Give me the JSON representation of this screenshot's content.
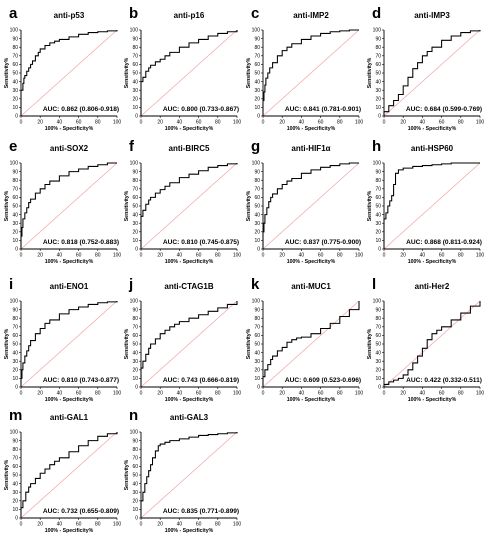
{
  "figure": {
    "background": "#ffffff",
    "roc_color": "#000000",
    "diagonal_color": "#f4a3a3"
  },
  "chart_data": [
    {
      "letter": "a",
      "type": "line",
      "title": "anti-p53",
      "auc": "AUC: 0.862 (0.806-0.918)",
      "xlabel": "100% - Specificity%",
      "ylabel": "Sensitivity%",
      "xlim": [
        0,
        100
      ],
      "ylim": [
        0,
        100
      ],
      "xticks": [
        0,
        20,
        40,
        60,
        80,
        100
      ],
      "yticks": [
        0,
        10,
        20,
        30,
        40,
        50,
        60,
        70,
        80,
        90,
        100
      ],
      "diagonal": true,
      "x": [
        0,
        0,
        2,
        3,
        4,
        6,
        8,
        10,
        12,
        15,
        18,
        20,
        25,
        30,
        35,
        40,
        50,
        60,
        70,
        80,
        90,
        100
      ],
      "y": [
        0,
        30,
        38,
        44,
        47,
        52,
        56,
        60,
        64,
        70,
        74,
        78,
        82,
        85,
        87,
        89,
        92,
        95,
        97,
        98,
        99,
        100
      ]
    },
    {
      "letter": "b",
      "type": "line",
      "title": "anti-p16",
      "auc": "AUC: 0.800 (0.733-0.867)",
      "xlabel": "100% - Specificity%",
      "ylabel": "Sensitivity%",
      "xlim": [
        0,
        100
      ],
      "ylim": [
        0,
        100
      ],
      "xticks": [
        0,
        20,
        40,
        60,
        80,
        100
      ],
      "yticks": [
        0,
        10,
        20,
        30,
        40,
        50,
        60,
        70,
        80,
        90,
        100
      ],
      "diagonal": true,
      "x": [
        0,
        0,
        2,
        5,
        8,
        10,
        15,
        20,
        25,
        30,
        40,
        50,
        60,
        70,
        80,
        90,
        100
      ],
      "y": [
        0,
        40,
        45,
        52,
        56,
        59,
        63,
        66,
        70,
        74,
        80,
        85,
        89,
        93,
        96,
        98,
        100
      ]
    },
    {
      "letter": "c",
      "type": "line",
      "title": "anti-IMP2",
      "auc": "AUC: 0.841 (0.781-0.901)",
      "xlabel": "100% - Specificity%",
      "ylabel": "Sensitivity%",
      "xlim": [
        0,
        100
      ],
      "ylim": [
        0,
        100
      ],
      "xticks": [
        0,
        20,
        40,
        60,
        80,
        100
      ],
      "yticks": [
        0,
        10,
        20,
        30,
        40,
        50,
        60,
        70,
        80,
        90,
        100
      ],
      "diagonal": true,
      "x": [
        0,
        0,
        1,
        2,
        3,
        5,
        7,
        10,
        15,
        20,
        25,
        30,
        40,
        50,
        60,
        70,
        80,
        90,
        100
      ],
      "y": [
        0,
        18,
        28,
        36,
        44,
        50,
        56,
        62,
        70,
        76,
        80,
        84,
        89,
        93,
        96,
        98,
        99,
        100,
        100
      ]
    },
    {
      "letter": "d",
      "type": "line",
      "title": "anti-IMP3",
      "auc": "AUC: 0.684 (0.599-0.769)",
      "xlabel": "100% - Specificity%",
      "ylabel": "Sensitivity%",
      "xlim": [
        0,
        100
      ],
      "ylim": [
        0,
        100
      ],
      "xticks": [
        0,
        20,
        40,
        60,
        80,
        100
      ],
      "yticks": [
        0,
        10,
        20,
        30,
        40,
        50,
        60,
        70,
        80,
        90,
        100
      ],
      "diagonal": true,
      "x": [
        0,
        0,
        5,
        10,
        15,
        20,
        25,
        30,
        35,
        40,
        45,
        50,
        60,
        70,
        80,
        90,
        100
      ],
      "y": [
        0,
        5,
        12,
        18,
        25,
        35,
        45,
        55,
        62,
        70,
        75,
        80,
        88,
        93,
        97,
        99,
        100
      ]
    },
    {
      "letter": "e",
      "type": "line",
      "title": "anti-SOX2",
      "auc": "AUC: 0.818 (0.752-0.883)",
      "xlabel": "100% - Specificity%",
      "ylabel": "Sensitivity%",
      "xlim": [
        0,
        100
      ],
      "ylim": [
        0,
        100
      ],
      "xticks": [
        0,
        20,
        40,
        60,
        80,
        100
      ],
      "yticks": [
        0,
        10,
        20,
        30,
        40,
        50,
        60,
        70,
        80,
        90,
        100
      ],
      "diagonal": true,
      "x": [
        0,
        0,
        1,
        2,
        4,
        6,
        8,
        10,
        15,
        20,
        25,
        30,
        40,
        50,
        60,
        70,
        80,
        90,
        100
      ],
      "y": [
        0,
        15,
        25,
        35,
        42,
        48,
        54,
        58,
        65,
        70,
        75,
        79,
        85,
        90,
        93,
        96,
        98,
        100,
        100
      ]
    },
    {
      "letter": "f",
      "type": "line",
      "title": "anti-BIRC5",
      "auc": "AUC: 0.810 (0.745-0.875)",
      "xlabel": "100% - Specificity%",
      "ylabel": "Sensitivity%",
      "xlim": [
        0,
        100
      ],
      "ylim": [
        0,
        100
      ],
      "xticks": [
        0,
        20,
        40,
        60,
        80,
        100
      ],
      "yticks": [
        0,
        10,
        20,
        30,
        40,
        50,
        60,
        70,
        80,
        90,
        100
      ],
      "diagonal": true,
      "x": [
        0,
        0,
        2,
        5,
        8,
        10,
        15,
        20,
        25,
        30,
        40,
        50,
        60,
        70,
        80,
        90,
        100
      ],
      "y": [
        0,
        38,
        45,
        52,
        57,
        60,
        65,
        69,
        73,
        77,
        83,
        87,
        91,
        95,
        97,
        99,
        100
      ]
    },
    {
      "letter": "g",
      "type": "line",
      "title": "anti-HIF1α",
      "auc": "AUC: 0.837 (0.775-0.900)",
      "xlabel": "100% - Specificity%",
      "ylabel": "Sensitivity%",
      "xlim": [
        0,
        100
      ],
      "ylim": [
        0,
        100
      ],
      "xticks": [
        0,
        20,
        40,
        60,
        80,
        100
      ],
      "yticks": [
        0,
        10,
        20,
        30,
        40,
        50,
        60,
        70,
        80,
        90,
        100
      ],
      "diagonal": true,
      "x": [
        0,
        0,
        1,
        2,
        4,
        6,
        8,
        10,
        15,
        20,
        25,
        30,
        40,
        50,
        60,
        70,
        80,
        90,
        100
      ],
      "y": [
        0,
        20,
        30,
        40,
        48,
        55,
        60,
        64,
        70,
        75,
        79,
        82,
        88,
        92,
        95,
        97,
        99,
        100,
        100
      ]
    },
    {
      "letter": "h",
      "type": "line",
      "title": "anti-HSP60",
      "auc": "AUC: 0.868 (0.811-0.924)",
      "xlabel": "100% - Specificity%",
      "ylabel": "Sensitivity%",
      "xlim": [
        0,
        100
      ],
      "ylim": [
        0,
        100
      ],
      "xticks": [
        0,
        20,
        40,
        60,
        80,
        100
      ],
      "yticks": [
        0,
        10,
        20,
        30,
        40,
        50,
        60,
        70,
        80,
        90,
        100
      ],
      "diagonal": true,
      "x": [
        0,
        0,
        2,
        4,
        6,
        8,
        10,
        12,
        15,
        20,
        30,
        40,
        50,
        60,
        70,
        80,
        90,
        100
      ],
      "y": [
        0,
        35,
        42,
        50,
        56,
        62,
        75,
        88,
        92,
        94,
        96,
        97,
        98,
        99,
        100,
        100,
        100,
        100
      ]
    },
    {
      "letter": "i",
      "type": "line",
      "title": "anti-ENO1",
      "auc": "AUC: 0.810 (0.743-0.877)",
      "xlabel": "100% - Specificity%",
      "ylabel": "Sensitivity%",
      "xlim": [
        0,
        100
      ],
      "ylim": [
        0,
        100
      ],
      "xticks": [
        0,
        20,
        40,
        60,
        80,
        100
      ],
      "yticks": [
        0,
        10,
        20,
        30,
        40,
        50,
        60,
        70,
        80,
        90,
        100
      ],
      "diagonal": true,
      "x": [
        0,
        0,
        1,
        2,
        4,
        6,
        8,
        10,
        15,
        20,
        25,
        30,
        40,
        50,
        60,
        70,
        80,
        90,
        100
      ],
      "y": [
        0,
        10,
        20,
        28,
        36,
        42,
        48,
        54,
        62,
        68,
        74,
        78,
        85,
        90,
        93,
        96,
        98,
        99,
        100
      ]
    },
    {
      "letter": "j",
      "type": "line",
      "title": "anti-CTAG1B",
      "auc": "AUC: 0.743 (0.666-0.819)",
      "xlabel": "100% - Specificity%",
      "ylabel": "Sensitivity%",
      "xlim": [
        0,
        100
      ],
      "ylim": [
        0,
        100
      ],
      "xticks": [
        0,
        20,
        40,
        60,
        80,
        100
      ],
      "yticks": [
        0,
        10,
        20,
        30,
        40,
        50,
        60,
        70,
        80,
        90,
        100
      ],
      "diagonal": true,
      "x": [
        0,
        0,
        2,
        5,
        8,
        10,
        15,
        20,
        25,
        30,
        35,
        40,
        50,
        60,
        70,
        80,
        90,
        100
      ],
      "y": [
        0,
        22,
        30,
        38,
        45,
        50,
        56,
        62,
        66,
        70,
        73,
        76,
        80,
        84,
        88,
        92,
        96,
        100
      ]
    },
    {
      "letter": "k",
      "type": "line",
      "title": "anti-MUC1",
      "auc": "AUC: 0.609 (0.523-0.696)",
      "xlabel": "100% - Specificity%",
      "ylabel": "Sensitivity%",
      "xlim": [
        0,
        100
      ],
      "ylim": [
        0,
        100
      ],
      "xticks": [
        0,
        20,
        40,
        60,
        80,
        100
      ],
      "yticks": [
        0,
        10,
        20,
        30,
        40,
        50,
        60,
        70,
        80,
        90,
        100
      ],
      "diagonal": true,
      "x": [
        0,
        0,
        2,
        5,
        8,
        10,
        15,
        20,
        25,
        30,
        35,
        40,
        50,
        60,
        70,
        80,
        90,
        100
      ],
      "y": [
        0,
        12,
        20,
        26,
        32,
        36,
        42,
        46,
        52,
        55,
        57,
        58,
        62,
        68,
        74,
        82,
        90,
        100
      ]
    },
    {
      "letter": "l",
      "type": "line",
      "title": "anti-Her2",
      "auc": "AUC: 0.422 (0.332-0.511)",
      "xlabel": "100% - Specificity%",
      "ylabel": "Sensitivity%",
      "xlim": [
        0,
        100
      ],
      "ylim": [
        0,
        100
      ],
      "xticks": [
        0,
        20,
        40,
        60,
        80,
        100
      ],
      "yticks": [
        0,
        10,
        20,
        30,
        40,
        50,
        60,
        70,
        80,
        90,
        100
      ],
      "diagonal": true,
      "x": [
        0,
        0,
        5,
        10,
        15,
        20,
        25,
        30,
        35,
        40,
        45,
        50,
        55,
        60,
        70,
        80,
        90,
        100
      ],
      "y": [
        0,
        3,
        6,
        8,
        10,
        14,
        20,
        28,
        36,
        45,
        55,
        62,
        66,
        70,
        78,
        86,
        94,
        100
      ]
    },
    {
      "letter": "m",
      "type": "line",
      "title": "anti-GAL1",
      "auc": "AUC: 0.732 (0.655-0.809)",
      "xlabel": "100% - Specificity%",
      "ylabel": "Sensitivity%",
      "xlim": [
        0,
        100
      ],
      "ylim": [
        0,
        100
      ],
      "xticks": [
        0,
        20,
        40,
        60,
        80,
        100
      ],
      "yticks": [
        0,
        10,
        20,
        30,
        40,
        50,
        60,
        70,
        80,
        90,
        100
      ],
      "diagonal": true,
      "x": [
        0,
        0,
        2,
        5,
        8,
        10,
        15,
        20,
        25,
        30,
        35,
        40,
        50,
        60,
        70,
        80,
        90,
        100
      ],
      "y": [
        0,
        12,
        20,
        30,
        36,
        40,
        46,
        52,
        57,
        62,
        66,
        70,
        77,
        84,
        90,
        95,
        98,
        100
      ]
    },
    {
      "letter": "n",
      "type": "line",
      "title": "anti-GAL3",
      "auc": "AUC: 0.835 (0.771-0.899)",
      "xlabel": "100% - Specificity%",
      "ylabel": "Sensitivity%",
      "xlim": [
        0,
        100
      ],
      "ylim": [
        0,
        100
      ],
      "xticks": [
        0,
        20,
        40,
        60,
        80,
        100
      ],
      "yticks": [
        0,
        10,
        20,
        30,
        40,
        50,
        60,
        70,
        80,
        90,
        100
      ],
      "diagonal": true,
      "x": [
        0,
        0,
        2,
        4,
        6,
        8,
        10,
        12,
        15,
        18,
        20,
        25,
        30,
        40,
        50,
        60,
        70,
        80,
        90,
        100
      ],
      "y": [
        0,
        20,
        30,
        40,
        48,
        55,
        62,
        70,
        78,
        84,
        86,
        88,
        90,
        92,
        94,
        96,
        97,
        98,
        99,
        100
      ]
    }
  ]
}
